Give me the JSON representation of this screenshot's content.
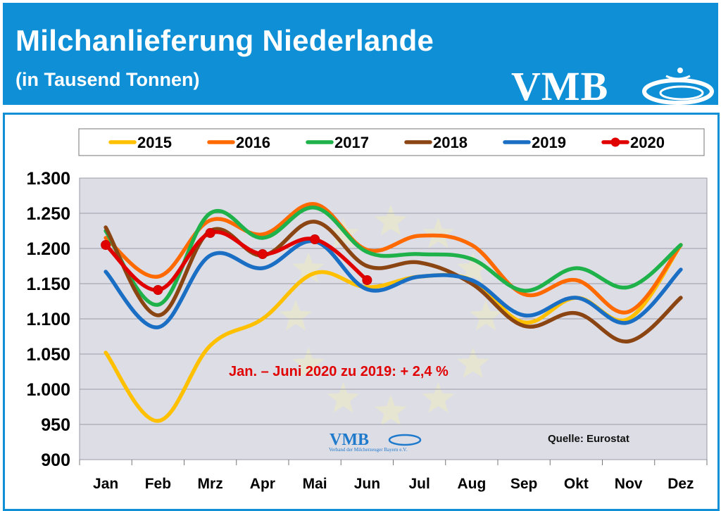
{
  "header": {
    "title": "Milchanlieferung Niederlande",
    "subtitle": "(in Tausend Tonnen)",
    "logo_text": "VMB"
  },
  "watermark": {
    "logo_text": "VMB",
    "tagline": "Verband der Milcherzeuger Bayern e.V."
  },
  "annotation": "Jan. – Juni 2020 zu 2019: + 2,4 %",
  "source": "Quelle: Eurostat",
  "colors": {
    "header_bg": "#0E8FD6",
    "plot_bg": "#DDDDE6",
    "annotation": "#E00000"
  },
  "chart_data": {
    "type": "line",
    "title": "Milchanlieferung Niederlande",
    "subtitle": "(in Tausend Tonnen)",
    "categories": [
      "Jan",
      "Feb",
      "Mrz",
      "Apr",
      "Mai",
      "Jun",
      "Jul",
      "Aug",
      "Sep",
      "Okt",
      "Nov",
      "Dez"
    ],
    "ylim": [
      900,
      1300
    ],
    "yticks": [
      900,
      950,
      1000,
      1050,
      1100,
      1150,
      1200,
      1250,
      1300
    ],
    "ytick_labels": [
      "900",
      "950",
      "1.000",
      "1.050",
      "1.100",
      "1.150",
      "1.200",
      "1.250",
      "1.300"
    ],
    "grid": true,
    "legend": "top",
    "series": [
      {
        "name": "2015",
        "color": "#FFC000",
        "markers": false,
        "values": [
          1052,
          955,
          1062,
          1100,
          1165,
          1145,
          1160,
          1155,
          1095,
          1130,
          1100,
          1205
        ]
      },
      {
        "name": "2016",
        "color": "#FF6A00",
        "markers": false,
        "values": [
          1215,
          1160,
          1240,
          1220,
          1263,
          1198,
          1218,
          1205,
          1135,
          1155,
          1110,
          1205
        ]
      },
      {
        "name": "2017",
        "color": "#1FB24A",
        "markers": false,
        "values": [
          1225,
          1120,
          1250,
          1215,
          1258,
          1195,
          1192,
          1185,
          1140,
          1172,
          1145,
          1205
        ]
      },
      {
        "name": "2018",
        "color": "#8B4513",
        "markers": false,
        "values": [
          1230,
          1105,
          1225,
          1190,
          1238,
          1175,
          1180,
          1150,
          1090,
          1108,
          1068,
          1130
        ]
      },
      {
        "name": "2019",
        "color": "#1A6FC4",
        "markers": false,
        "values": [
          1167,
          1088,
          1190,
          1172,
          1210,
          1142,
          1160,
          1155,
          1105,
          1130,
          1095,
          1170
        ]
      },
      {
        "name": "2020",
        "color": "#E00000",
        "markers": true,
        "values": [
          1205,
          1141,
          1222,
          1192,
          1213,
          1155,
          null,
          null,
          null,
          null,
          null,
          null
        ]
      }
    ]
  }
}
